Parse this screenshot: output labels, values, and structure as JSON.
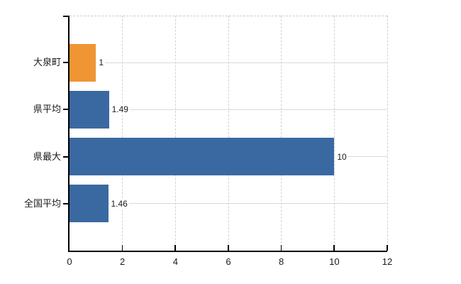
{
  "chart_data": {
    "type": "bar",
    "orientation": "horizontal",
    "title": "",
    "categories": [
      "大泉町",
      "県平均",
      "県最大",
      "全国平均"
    ],
    "values": [
      1,
      1.49,
      10,
      1.46
    ],
    "value_labels": [
      "1",
      "1.49",
      "10",
      "1.46"
    ],
    "bar_colors": [
      "#EF9533",
      "#3A69A1",
      "#3A69A1",
      "#3A69A1"
    ],
    "xlim": [
      0,
      12
    ],
    "x_tick_labels": [
      "0",
      "2",
      "4",
      "6",
      "8",
      "10",
      "12"
    ],
    "x_tick_values": [
      0,
      2,
      4,
      6,
      8,
      10,
      12
    ],
    "grid": true,
    "legend": false
  },
  "colors": {
    "background": "#FFFFFF",
    "bar_highlight": "#EF9533",
    "bar_default": "#3A69A1",
    "grid_line": "#D9D9D9",
    "border_dashed": "#CBCBCB",
    "axis_line": "#000000",
    "text": "#1A1A1A"
  }
}
